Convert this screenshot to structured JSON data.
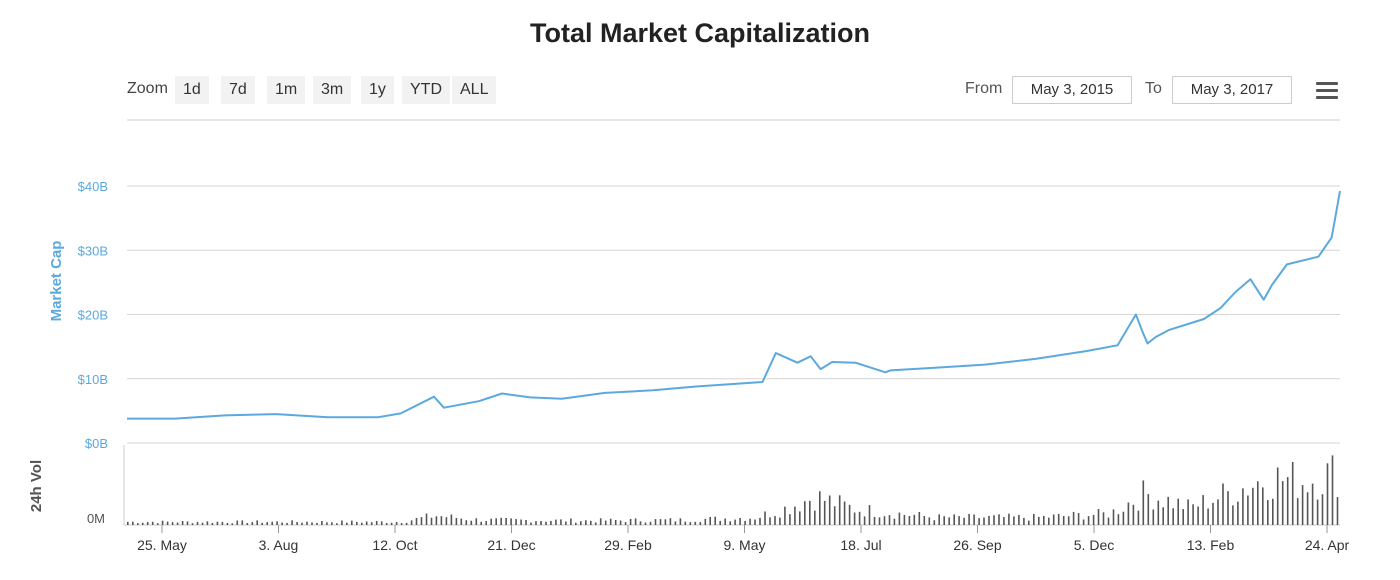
{
  "chart_data": {
    "type": "line",
    "title": "Total Market Capitalization",
    "ylabel": "Market Cap",
    "y2label": "24h Vol",
    "y_ticks": [
      "$0B",
      "$10B",
      "$20B",
      "$30B",
      "$40B"
    ],
    "ylim": [
      0,
      40
    ],
    "vol_tick": "0M",
    "x_ticks": [
      "25. May",
      "3. Aug",
      "12. Oct",
      "21. Dec",
      "29. Feb",
      "9. May",
      "18. Jul",
      "26. Sep",
      "5. Dec",
      "13. Feb",
      "24. Apr"
    ],
    "xlim": [
      "2015-05-03",
      "2017-05-03"
    ],
    "grid": true,
    "series": [
      {
        "name": "Market Cap",
        "color": "#5ba9dd",
        "x": [
          "2015-05-03",
          "2015-06-01",
          "2015-07-01",
          "2015-08-01",
          "2015-09-01",
          "2015-10-01",
          "2015-10-15",
          "2015-11-04",
          "2015-11-10",
          "2015-12-01",
          "2015-12-15",
          "2016-01-01",
          "2016-01-20",
          "2016-02-15",
          "2016-03-15",
          "2016-04-10",
          "2016-05-20",
          "2016-05-28",
          "2016-06-10",
          "2016-06-18",
          "2016-06-24",
          "2016-07-01",
          "2016-07-15",
          "2016-08-02",
          "2016-08-05",
          "2016-09-01",
          "2016-10-01",
          "2016-11-01",
          "2016-12-01",
          "2016-12-20",
          "2016-12-31",
          "2017-01-04",
          "2017-01-07",
          "2017-01-12",
          "2017-01-20",
          "2017-02-10",
          "2017-02-20",
          "2017-03-01",
          "2017-03-10",
          "2017-03-18",
          "2017-03-23",
          "2017-04-01",
          "2017-04-20",
          "2017-04-28",
          "2017-05-03"
        ],
        "values": [
          3.8,
          3.8,
          4.3,
          4.5,
          4.0,
          4.0,
          4.6,
          7.2,
          5.5,
          6.5,
          7.7,
          7.1,
          6.9,
          7.8,
          8.2,
          8.8,
          9.5,
          14.0,
          12.5,
          13.5,
          11.5,
          12.6,
          12.5,
          11.0,
          11.3,
          11.7,
          12.2,
          13.1,
          14.3,
          15.2,
          20.0,
          17.3,
          15.5,
          16.5,
          17.6,
          19.3,
          21.0,
          23.5,
          25.5,
          22.3,
          24.6,
          27.8,
          29.0,
          32.0,
          39.2
        ]
      }
    ],
    "volume": {
      "name": "24h Vol",
      "color": "#555555",
      "x": [
        "2015-05-03",
        "2015-08-01",
        "2015-10-15",
        "2015-11-04",
        "2015-12-01",
        "2016-02-01",
        "2016-04-01",
        "2016-05-15",
        "2016-06-01",
        "2016-06-20",
        "2016-07-15",
        "2016-09-01",
        "2016-11-01",
        "2016-12-15",
        "2017-01-05",
        "2017-02-01",
        "2017-03-01",
        "2017-03-20",
        "2017-04-10",
        "2017-05-03"
      ],
      "values": [
        0.05,
        0.05,
        0.05,
        0.15,
        0.08,
        0.07,
        0.08,
        0.12,
        0.25,
        0.45,
        0.25,
        0.12,
        0.12,
        0.18,
        0.5,
        0.28,
        0.55,
        0.75,
        0.7,
        0.85
      ]
    }
  },
  "zoom": {
    "label": "Zoom",
    "buttons": [
      "1d",
      "7d",
      "1m",
      "3m",
      "1y",
      "YTD",
      "ALL"
    ]
  },
  "range": {
    "from_label": "From",
    "from_value": "May 3, 2015",
    "to_label": "To",
    "to_value": "May 3, 2017"
  }
}
